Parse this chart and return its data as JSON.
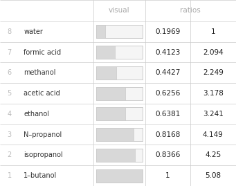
{
  "rows": [
    {
      "rank": "8",
      "name": "water",
      "visual": 0.1969,
      "value": "0.1969",
      "ratio": "1"
    },
    {
      "rank": "7",
      "name": "formic acid",
      "visual": 0.4123,
      "value": "0.4123",
      "ratio": "2.094"
    },
    {
      "rank": "6",
      "name": "methanol",
      "visual": 0.4427,
      "value": "0.4427",
      "ratio": "2.249"
    },
    {
      "rank": "5",
      "name": "acetic acid",
      "visual": 0.6256,
      "value": "0.6256",
      "ratio": "3.178"
    },
    {
      "rank": "4",
      "name": "ethanol",
      "visual": 0.6381,
      "value": "0.6381",
      "ratio": "3.241"
    },
    {
      "rank": "3",
      "name": "N–propanol",
      "visual": 0.8168,
      "value": "0.8168",
      "ratio": "4.149"
    },
    {
      "rank": "2",
      "name": "isopropanol",
      "visual": 0.8366,
      "value": "0.8366",
      "ratio": "4.25"
    },
    {
      "rank": "1",
      "name": "1–butanol",
      "visual": 1.0,
      "value": "1",
      "ratio": "5.08"
    }
  ],
  "col_headers": [
    "visual",
    "ratios"
  ],
  "bg_color": "#ffffff",
  "header_text_color": "#aaaaaa",
  "rank_text_color": "#bbbbbb",
  "name_text_color": "#333333",
  "value_text_color": "#222222",
  "bar_fill_color": "#d8d8d8",
  "bar_bg_color": "#f5f5f5",
  "bar_border_color": "#cccccc",
  "grid_color": "#cccccc",
  "figsize": [
    3.41,
    2.69
  ],
  "dpi": 100
}
